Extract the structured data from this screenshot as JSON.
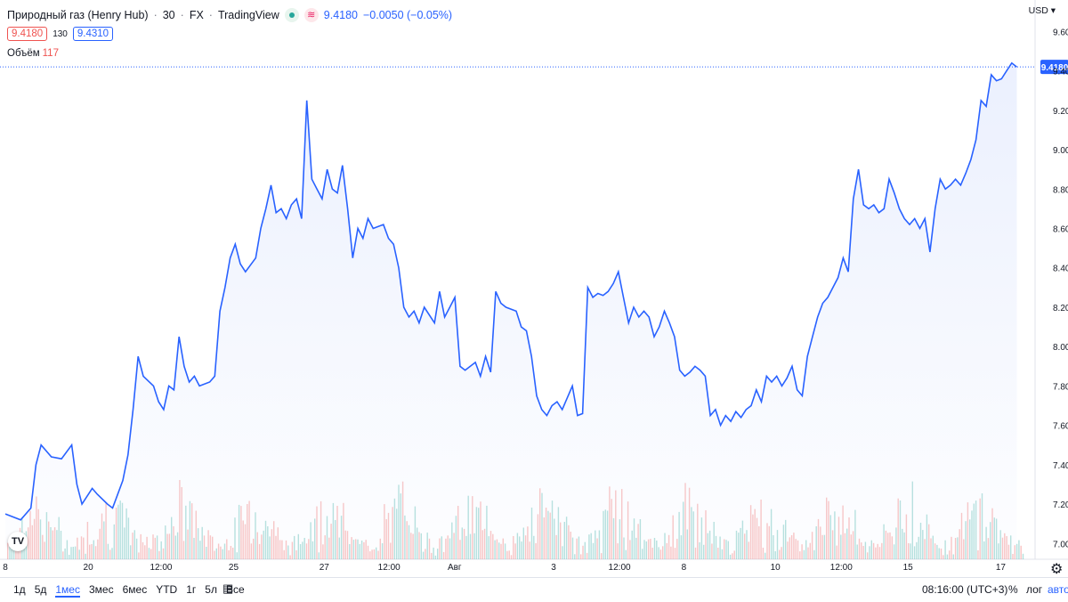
{
  "header": {
    "symbol": "Природный газ (Henry Hub)",
    "interval": "30",
    "exchange": "FX",
    "source": "TradingView",
    "price": "9.4180",
    "change": "−0.0050 (−0.05%)",
    "bid": "9.4180",
    "spread": "130",
    "ask": "9.4310",
    "volume_label": "Объём",
    "volume_value": "117"
  },
  "currency": "USD",
  "last_price_label": "9.4180",
  "colors": {
    "line": "#2962ff",
    "fill": "#dbe4fd",
    "up_volume": "#26a69a",
    "down_volume": "#ef5350",
    "price_tag": "#2962ff"
  },
  "chart_data": {
    "type": "line",
    "y_ticks": [
      "9.6000",
      "9.4000",
      "9.2000",
      "9.0000",
      "8.8000",
      "8.6000",
      "8.4000",
      "8.2000",
      "8.0000",
      "7.8000",
      "7.6000",
      "7.4000",
      "7.2000",
      "7.0000"
    ],
    "ylim": [
      6.92,
      9.76
    ],
    "x_ticks": [
      {
        "label": "8",
        "pos": 0
      },
      {
        "label": "20",
        "pos": 0.0811
      },
      {
        "label": "12:00",
        "pos": 0.1524
      },
      {
        "label": "25",
        "pos": 0.2234
      },
      {
        "label": "27",
        "pos": 0.3121
      },
      {
        "label": "12:00",
        "pos": 0.3756
      },
      {
        "label": "Авг",
        "pos": 0.4397
      },
      {
        "label": "3",
        "pos": 0.5366
      },
      {
        "label": "12:00",
        "pos": 0.6011
      },
      {
        "label": "8",
        "pos": 0.6641
      },
      {
        "label": "10",
        "pos": 0.7536
      },
      {
        "label": "12:00",
        "pos": 0.8182
      },
      {
        "label": "15",
        "pos": 0.8834
      },
      {
        "label": "17",
        "pos": 0.9742
      }
    ],
    "series": [
      {
        "points": [
          [
            0,
            7.15
          ],
          [
            0.015,
            7.12
          ],
          [
            0.025,
            7.18
          ],
          [
            0.03,
            7.4
          ],
          [
            0.035,
            7.5
          ],
          [
            0.045,
            7.44
          ],
          [
            0.055,
            7.43
          ],
          [
            0.065,
            7.5
          ],
          [
            0.07,
            7.3
          ],
          [
            0.075,
            7.2
          ],
          [
            0.085,
            7.28
          ],
          [
            0.09,
            7.25
          ],
          [
            0.1,
            7.2
          ],
          [
            0.105,
            7.18
          ],
          [
            0.115,
            7.32
          ],
          [
            0.12,
            7.45
          ],
          [
            0.125,
            7.68
          ],
          [
            0.13,
            7.95
          ],
          [
            0.135,
            7.85
          ],
          [
            0.145,
            7.8
          ],
          [
            0.15,
            7.72
          ],
          [
            0.155,
            7.68
          ],
          [
            0.16,
            7.8
          ],
          [
            0.165,
            7.78
          ],
          [
            0.17,
            8.05
          ],
          [
            0.175,
            7.9
          ],
          [
            0.18,
            7.82
          ],
          [
            0.185,
            7.85
          ],
          [
            0.19,
            7.8
          ],
          [
            0.2,
            7.82
          ],
          [
            0.205,
            7.85
          ],
          [
            0.21,
            8.18
          ],
          [
            0.215,
            8.3
          ],
          [
            0.22,
            8.45
          ],
          [
            0.225,
            8.52
          ],
          [
            0.23,
            8.42
          ],
          [
            0.235,
            8.38
          ],
          [
            0.245,
            8.45
          ],
          [
            0.25,
            8.6
          ],
          [
            0.255,
            8.7
          ],
          [
            0.26,
            8.82
          ],
          [
            0.265,
            8.68
          ],
          [
            0.27,
            8.7
          ],
          [
            0.275,
            8.65
          ],
          [
            0.28,
            8.72
          ],
          [
            0.285,
            8.75
          ],
          [
            0.29,
            8.65
          ],
          [
            0.295,
            9.25
          ],
          [
            0.3,
            8.85
          ],
          [
            0.305,
            8.8
          ],
          [
            0.31,
            8.75
          ],
          [
            0.315,
            8.9
          ],
          [
            0.32,
            8.8
          ],
          [
            0.325,
            8.78
          ],
          [
            0.33,
            8.92
          ],
          [
            0.335,
            8.7
          ],
          [
            0.34,
            8.45
          ],
          [
            0.345,
            8.6
          ],
          [
            0.35,
            8.55
          ],
          [
            0.355,
            8.65
          ],
          [
            0.36,
            8.6
          ],
          [
            0.37,
            8.62
          ],
          [
            0.375,
            8.55
          ],
          [
            0.38,
            8.52
          ],
          [
            0.385,
            8.4
          ],
          [
            0.39,
            8.2
          ],
          [
            0.395,
            8.15
          ],
          [
            0.4,
            8.18
          ],
          [
            0.405,
            8.12
          ],
          [
            0.41,
            8.2
          ],
          [
            0.42,
            8.12
          ],
          [
            0.425,
            8.28
          ],
          [
            0.43,
            8.15
          ],
          [
            0.435,
            8.2
          ],
          [
            0.44,
            8.25
          ],
          [
            0.445,
            7.9
          ],
          [
            0.45,
            7.88
          ],
          [
            0.46,
            7.92
          ],
          [
            0.465,
            7.85
          ],
          [
            0.47,
            7.95
          ],
          [
            0.475,
            7.87
          ],
          [
            0.48,
            8.28
          ],
          [
            0.485,
            8.22
          ],
          [
            0.49,
            8.2
          ],
          [
            0.5,
            8.18
          ],
          [
            0.505,
            8.1
          ],
          [
            0.51,
            8.08
          ],
          [
            0.515,
            7.95
          ],
          [
            0.52,
            7.75
          ],
          [
            0.525,
            7.68
          ],
          [
            0.53,
            7.65
          ],
          [
            0.535,
            7.7
          ],
          [
            0.54,
            7.72
          ],
          [
            0.545,
            7.68
          ],
          [
            0.55,
            7.74
          ],
          [
            0.555,
            7.8
          ],
          [
            0.56,
            7.65
          ],
          [
            0.565,
            7.66
          ],
          [
            0.57,
            8.3
          ],
          [
            0.575,
            8.25
          ],
          [
            0.58,
            8.27
          ],
          [
            0.585,
            8.26
          ],
          [
            0.59,
            8.28
          ],
          [
            0.595,
            8.32
          ],
          [
            0.6,
            8.38
          ],
          [
            0.605,
            8.25
          ],
          [
            0.61,
            8.12
          ],
          [
            0.615,
            8.2
          ],
          [
            0.62,
            8.15
          ],
          [
            0.625,
            8.18
          ],
          [
            0.63,
            8.15
          ],
          [
            0.635,
            8.05
          ],
          [
            0.64,
            8.1
          ],
          [
            0.645,
            8.18
          ],
          [
            0.65,
            8.12
          ],
          [
            0.655,
            8.05
          ],
          [
            0.66,
            7.88
          ],
          [
            0.665,
            7.85
          ],
          [
            0.67,
            7.87
          ],
          [
            0.675,
            7.9
          ],
          [
            0.68,
            7.88
          ],
          [
            0.685,
            7.85
          ],
          [
            0.69,
            7.65
          ],
          [
            0.695,
            7.68
          ],
          [
            0.7,
            7.6
          ],
          [
            0.705,
            7.65
          ],
          [
            0.71,
            7.62
          ],
          [
            0.715,
            7.67
          ],
          [
            0.72,
            7.64
          ],
          [
            0.725,
            7.68
          ],
          [
            0.73,
            7.7
          ],
          [
            0.735,
            7.78
          ],
          [
            0.74,
            7.72
          ],
          [
            0.745,
            7.85
          ],
          [
            0.75,
            7.82
          ],
          [
            0.755,
            7.85
          ],
          [
            0.76,
            7.8
          ],
          [
            0.765,
            7.84
          ],
          [
            0.77,
            7.9
          ],
          [
            0.775,
            7.78
          ],
          [
            0.78,
            7.75
          ],
          [
            0.785,
            7.95
          ],
          [
            0.79,
            8.05
          ],
          [
            0.795,
            8.15
          ],
          [
            0.8,
            8.22
          ],
          [
            0.805,
            8.25
          ],
          [
            0.81,
            8.3
          ],
          [
            0.815,
            8.35
          ],
          [
            0.82,
            8.45
          ],
          [
            0.825,
            8.38
          ],
          [
            0.83,
            8.75
          ],
          [
            0.835,
            8.9
          ],
          [
            0.84,
            8.72
          ],
          [
            0.845,
            8.7
          ],
          [
            0.85,
            8.72
          ],
          [
            0.855,
            8.68
          ],
          [
            0.86,
            8.7
          ],
          [
            0.865,
            8.85
          ],
          [
            0.87,
            8.78
          ],
          [
            0.875,
            8.7
          ],
          [
            0.88,
            8.65
          ],
          [
            0.885,
            8.62
          ],
          [
            0.89,
            8.65
          ],
          [
            0.895,
            8.6
          ],
          [
            0.9,
            8.65
          ],
          [
            0.905,
            8.48
          ],
          [
            0.91,
            8.7
          ],
          [
            0.915,
            8.85
          ],
          [
            0.92,
            8.8
          ],
          [
            0.925,
            8.82
          ],
          [
            0.93,
            8.85
          ],
          [
            0.935,
            8.82
          ],
          [
            0.94,
            8.88
          ],
          [
            0.945,
            8.95
          ],
          [
            0.95,
            9.05
          ],
          [
            0.955,
            9.25
          ],
          [
            0.96,
            9.22
          ],
          [
            0.965,
            9.38
          ],
          [
            0.97,
            9.35
          ],
          [
            0.975,
            9.36
          ],
          [
            0.98,
            9.4
          ],
          [
            0.985,
            9.44
          ],
          [
            0.99,
            9.42
          ]
        ]
      }
    ]
  },
  "toolbar": {
    "ranges": [
      "1д",
      "5д",
      "1мес",
      "3мес",
      "6мес",
      "YTD",
      "1г",
      "5л",
      "Все"
    ],
    "active_range": "1мес",
    "time": "08:16:00 (UTC+3)",
    "percent": "%",
    "log": "лог",
    "auto": "авто"
  }
}
